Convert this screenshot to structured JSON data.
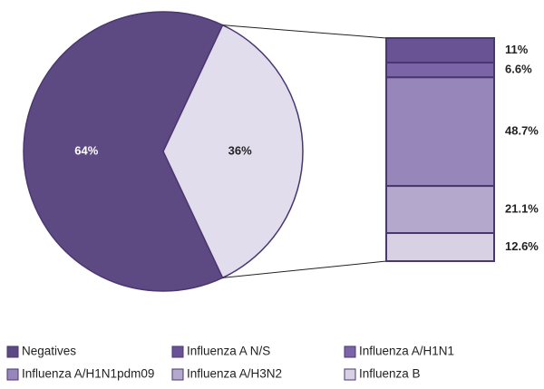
{
  "chart_data": [
    {
      "type": "pie",
      "categories": [
        "Negatives",
        null
      ],
      "values": [
        64,
        36
      ],
      "value_labels": [
        "64%",
        "36%"
      ],
      "colors": [
        "#5e4a82",
        "#e2dded"
      ],
      "legend": "bottom"
    },
    {
      "type": "stacked-bar",
      "categories": [
        "Influenza A N/S",
        "Influenza A/H1N1",
        "Influenza A/H1N1pdm09",
        "Influenza A/H3N2",
        "Influenza B"
      ],
      "values": [
        11,
        6.6,
        48.7,
        21.1,
        12.6
      ],
      "value_labels": [
        "11%",
        "6.6%",
        "48.7%",
        "21.1%",
        "12.6%"
      ],
      "colors": [
        "#6a5394",
        "#7c64a8",
        "#9686ba",
        "#b4a9cd",
        "#d8d1e4"
      ]
    }
  ]
}
